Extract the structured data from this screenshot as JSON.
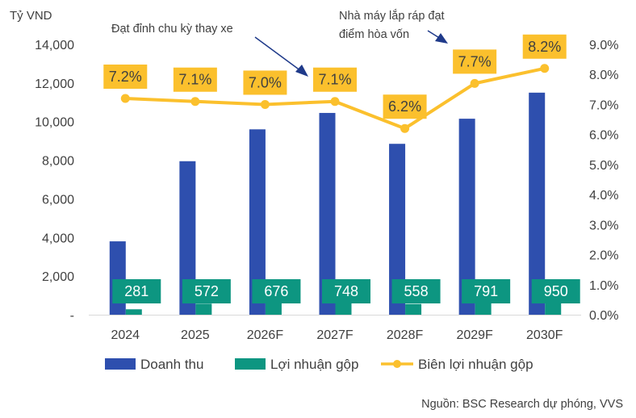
{
  "chart_data": {
    "type": "bar",
    "title": "",
    "y_unit_label": "Tỷ VND",
    "categories": [
      "2024",
      "2025",
      "2026F",
      "2027F",
      "2028F",
      "2029F",
      "2030F"
    ],
    "series": [
      {
        "name": "Doanh thu",
        "kind": "bar",
        "axis": "left",
        "color": "#2E4FAE",
        "values": [
          3800,
          7950,
          9600,
          10450,
          8850,
          10150,
          11500
        ]
      },
      {
        "name": "Lợi nhuận gộp",
        "kind": "bar",
        "axis": "left",
        "color": "#0D9681",
        "values": [
          281,
          572,
          676,
          748,
          558,
          791,
          950
        ],
        "labels": [
          "281",
          "572",
          "676",
          "748",
          "558",
          "791",
          "950"
        ]
      },
      {
        "name": "Biên lợi nhuận gộp",
        "kind": "line",
        "axis": "right",
        "color": "#FBC02D",
        "values": [
          7.2,
          7.1,
          7.0,
          7.1,
          6.2,
          7.7,
          8.2
        ],
        "labels": [
          "7.2%",
          "7.1%",
          "7.0%",
          "7.1%",
          "6.2%",
          "7.7%",
          "8.2%"
        ]
      }
    ],
    "y_left": {
      "min": 0,
      "max": 14000,
      "step": 2000,
      "tick_labels": [
        "-",
        "2,000",
        "4,000",
        "6,000",
        "8,000",
        "10,000",
        "12,000",
        "14,000"
      ]
    },
    "y_right": {
      "min": 0,
      "max": 9,
      "step": 1,
      "tick_labels": [
        "0.0%",
        "1.0%",
        "2.0%",
        "3.0%",
        "4.0%",
        "5.0%",
        "6.0%",
        "7.0%",
        "8.0%",
        "9.0%"
      ]
    },
    "grid": false,
    "legend_position": "bottom",
    "annotations": [
      {
        "lines": [
          "Đạt đỉnh chu kỳ thay xe"
        ],
        "points_to": "2027F"
      },
      {
        "lines": [
          "Nhà máy lắp ráp đạt",
          "điểm hòa vốn"
        ],
        "points_to": "2029F"
      }
    ],
    "source": "Nguồn: BSC Research dự phóng, VVS"
  }
}
